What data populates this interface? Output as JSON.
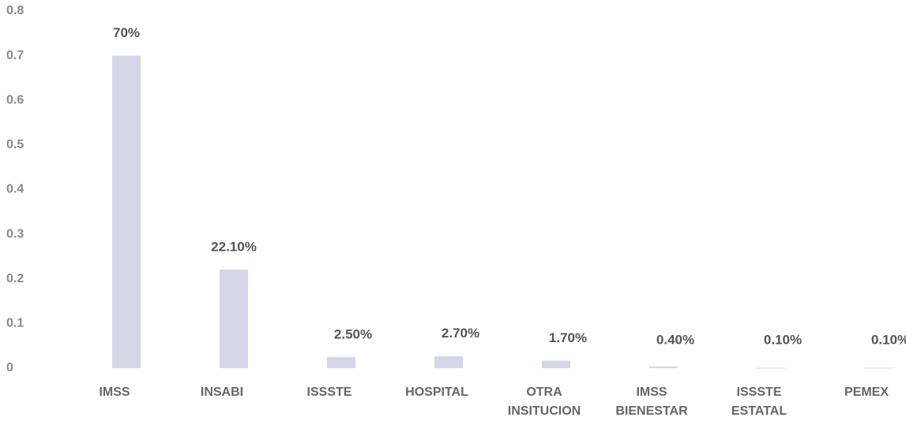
{
  "chart_data": {
    "type": "bar",
    "categories": [
      "IMSS",
      "INSABI",
      "ISSSTE",
      "HOSPITAL",
      "OTRA INSITUCION",
      "IMSS BIENESTAR",
      "ISSSTE ESTATAL",
      "PEMEX"
    ],
    "values": [
      0.7,
      0.221,
      0.025,
      0.027,
      0.017,
      0.004,
      0.001,
      0.001
    ],
    "value_labels": [
      "70%",
      "22.10%",
      "2.50%",
      "2.70%",
      "1.70%",
      "0.40%",
      "0.10%",
      "0.10%"
    ],
    "color": "#d6d6e8",
    "ylim": [
      0,
      0.8
    ],
    "yticks": [
      0,
      0.1,
      0.2,
      0.3,
      0.4,
      0.5,
      0.6,
      0.7,
      0.8
    ],
    "grid": false
  }
}
